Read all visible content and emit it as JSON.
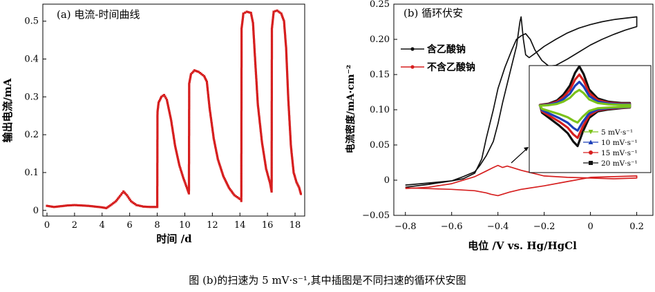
{
  "caption": "图 (b)的扫速为 5 mV·s⁻¹,其中插图是不同扫速的循环伏安图",
  "colors": {
    "red": "#d61f1f",
    "black": "#111111",
    "blue": "#1c3fb8",
    "green": "#7cc21b"
  },
  "chart_data": [
    {
      "type": "line",
      "panel_label": "(a) 电流-时间曲线",
      "xlabel": "时间 /d",
      "ylabel": "输出电流/mA",
      "xlim": [
        -0.3,
        18.7
      ],
      "ylim": [
        -0.015,
        0.545
      ],
      "xticks": [
        0,
        2,
        4,
        6,
        8,
        10,
        12,
        14,
        16,
        18
      ],
      "yticks": [
        0,
        0.1,
        0.2,
        0.3,
        0.4,
        0.5
      ],
      "ytick_labels": [
        "0",
        "0.1",
        "0.2",
        "0.3",
        "0.4",
        "0.5"
      ],
      "series": [
        {
          "color": "#d61f1f",
          "points": [
            [
              0,
              0.012
            ],
            [
              0.5,
              0.009
            ],
            [
              1,
              0.011
            ],
            [
              1.5,
              0.013
            ],
            [
              2,
              0.014
            ],
            [
              2.5,
              0.013
            ],
            [
              3,
              0.012
            ],
            [
              3.5,
              0.01
            ],
            [
              4,
              0.008
            ],
            [
              4.3,
              0.006
            ],
            [
              4.6,
              0.013
            ],
            [
              5.0,
              0.024
            ],
            [
              5.3,
              0.038
            ],
            [
              5.55,
              0.05
            ],
            [
              5.8,
              0.04
            ],
            [
              6.1,
              0.024
            ],
            [
              6.5,
              0.014
            ],
            [
              7.0,
              0.01
            ],
            [
              7.5,
              0.009
            ],
            [
              8.0,
              0.009
            ],
            [
              8.02,
              0.26
            ],
            [
              8.1,
              0.285
            ],
            [
              8.3,
              0.3
            ],
            [
              8.5,
              0.305
            ],
            [
              8.7,
              0.292
            ],
            [
              9.0,
              0.24
            ],
            [
              9.3,
              0.17
            ],
            [
              9.6,
              0.12
            ],
            [
              9.9,
              0.085
            ],
            [
              10.15,
              0.06
            ],
            [
              10.3,
              0.045
            ],
            [
              10.32,
              0.335
            ],
            [
              10.45,
              0.36
            ],
            [
              10.7,
              0.37
            ],
            [
              11.0,
              0.366
            ],
            [
              11.4,
              0.355
            ],
            [
              11.6,
              0.34
            ],
            [
              11.8,
              0.27
            ],
            [
              12.1,
              0.19
            ],
            [
              12.4,
              0.135
            ],
            [
              12.8,
              0.09
            ],
            [
              13.2,
              0.06
            ],
            [
              13.6,
              0.04
            ],
            [
              14.0,
              0.03
            ],
            [
              14.1,
              0.025
            ],
            [
              14.12,
              0.48
            ],
            [
              14.25,
              0.52
            ],
            [
              14.5,
              0.525
            ],
            [
              14.8,
              0.522
            ],
            [
              14.95,
              0.495
            ],
            [
              15.1,
              0.4
            ],
            [
              15.3,
              0.28
            ],
            [
              15.6,
              0.18
            ],
            [
              15.9,
              0.11
            ],
            [
              16.2,
              0.07
            ],
            [
              16.3,
              0.05
            ],
            [
              16.32,
              0.48
            ],
            [
              16.45,
              0.525
            ],
            [
              16.7,
              0.528
            ],
            [
              17.0,
              0.52
            ],
            [
              17.2,
              0.5
            ],
            [
              17.35,
              0.43
            ],
            [
              17.5,
              0.3
            ],
            [
              17.7,
              0.17
            ],
            [
              17.9,
              0.1
            ],
            [
              18.1,
              0.075
            ],
            [
              18.3,
              0.06
            ],
            [
              18.45,
              0.04
            ]
          ]
        }
      ]
    },
    {
      "type": "line",
      "panel_label": "(b) 循环伏安",
      "xlabel": "电位 /V vs. Hg/HgCl",
      "ylabel": "电流密度/mA·cm⁻²",
      "xlim": [
        -0.85,
        0.27
      ],
      "ylim": [
        -0.05,
        0.25
      ],
      "xticks": [
        -0.8,
        -0.6,
        -0.4,
        -0.2,
        0,
        0.2
      ],
      "xtick_labels": [
        "−0.8",
        "−0.6",
        "−0.4",
        "−0.2",
        "0",
        "0.2"
      ],
      "yticks": [
        -0.05,
        0,
        0.05,
        0.1,
        0.15,
        0.2,
        0.25
      ],
      "ytick_labels": [
        "−0.05",
        "0",
        "0.05",
        "0.10",
        "0.15",
        "0.20",
        "0.25"
      ],
      "legend": {
        "placement": "upper-left",
        "entries": [
          "含乙酸钠",
          "不含乙酸钠"
        ]
      },
      "series": [
        {
          "name": "含乙酸钠",
          "color": "#111111",
          "points": [
            [
              -0.8,
              -0.007
            ],
            [
              -0.7,
              -0.004
            ],
            [
              -0.6,
              -0.001
            ],
            [
              -0.55,
              0.002
            ],
            [
              -0.5,
              0.01
            ],
            [
              -0.47,
              0.03
            ],
            [
              -0.45,
              0.06
            ],
            [
              -0.42,
              0.1
            ],
            [
              -0.4,
              0.13
            ],
            [
              -0.37,
              0.16
            ],
            [
              -0.34,
              0.185
            ],
            [
              -0.32,
              0.2
            ],
            [
              -0.3,
              0.205
            ],
            [
              -0.28,
              0.208
            ],
            [
              -0.26,
              0.2
            ],
            [
              -0.24,
              0.185
            ],
            [
              -0.21,
              0.17
            ],
            [
              -0.18,
              0.162
            ],
            [
              -0.15,
              0.163
            ],
            [
              -0.1,
              0.172
            ],
            [
              -0.05,
              0.182
            ],
            [
              0.0,
              0.192
            ],
            [
              0.05,
              0.2
            ],
            [
              0.1,
              0.207
            ],
            [
              0.15,
              0.213
            ],
            [
              0.2,
              0.218
            ],
            [
              0.2,
              0.232
            ],
            [
              0.15,
              0.23
            ],
            [
              0.1,
              0.228
            ],
            [
              0.05,
              0.225
            ],
            [
              0.0,
              0.221
            ],
            [
              -0.05,
              0.216
            ],
            [
              -0.1,
              0.209
            ],
            [
              -0.15,
              0.2
            ],
            [
              -0.2,
              0.19
            ],
            [
              -0.24,
              0.18
            ],
            [
              -0.265,
              0.174
            ],
            [
              -0.28,
              0.178
            ],
            [
              -0.29,
              0.2
            ],
            [
              -0.3,
              0.232
            ],
            [
              -0.305,
              0.225
            ],
            [
              -0.32,
              0.19
            ],
            [
              -0.35,
              0.15
            ],
            [
              -0.38,
              0.11
            ],
            [
              -0.4,
              0.08
            ],
            [
              -0.42,
              0.055
            ],
            [
              -0.45,
              0.035
            ],
            [
              -0.48,
              0.02
            ],
            [
              -0.5,
              0.012
            ],
            [
              -0.55,
              0.005
            ],
            [
              -0.6,
              -0.001
            ],
            [
              -0.7,
              -0.006
            ],
            [
              -0.8,
              -0.01
            ]
          ]
        },
        {
          "name": "不含乙酸钠",
          "color": "#d61f1f",
          "points": [
            [
              -0.8,
              -0.012
            ],
            [
              -0.7,
              -0.01
            ],
            [
              -0.6,
              -0.005
            ],
            [
              -0.5,
              0.005
            ],
            [
              -0.45,
              0.013
            ],
            [
              -0.42,
              0.018
            ],
            [
              -0.4,
              0.021
            ],
            [
              -0.38,
              0.018
            ],
            [
              -0.36,
              0.02
            ],
            [
              -0.34,
              0.018
            ],
            [
              -0.3,
              0.014
            ],
            [
              -0.25,
              0.01
            ],
            [
              -0.2,
              0.006
            ],
            [
              -0.1,
              0.004
            ],
            [
              0.0,
              0.003
            ],
            [
              0.1,
              0.002
            ],
            [
              0.2,
              0.003
            ],
            [
              0.2,
              0.006
            ],
            [
              0.1,
              0.005
            ],
            [
              0.0,
              0.004
            ],
            [
              -0.1,
              -0.002
            ],
            [
              -0.2,
              -0.008
            ],
            [
              -0.3,
              -0.013
            ],
            [
              -0.35,
              -0.017
            ],
            [
              -0.4,
              -0.022
            ],
            [
              -0.43,
              -0.02
            ],
            [
              -0.45,
              -0.018
            ],
            [
              -0.5,
              -0.015
            ],
            [
              -0.6,
              -0.013
            ],
            [
              -0.7,
              -0.012
            ],
            [
              -0.8,
              -0.011
            ]
          ]
        }
      ],
      "inset": {
        "legend": [
          {
            "label": "5 mV·s⁻¹",
            "color": "#7cc21b",
            "marker": "triangle-down"
          },
          {
            "label": "10 mV·s⁻¹",
            "color": "#1c3fb8",
            "marker": "triangle-up"
          },
          {
            "label": "15 mV·s⁻¹",
            "color": "#d61f1f",
            "marker": "circle"
          },
          {
            "label": "20 mV·s⁻¹",
            "color": "#111111",
            "marker": "square"
          }
        ],
        "scales": [
          1.0,
          1.5,
          1.95,
          2.45
        ]
      }
    }
  ]
}
